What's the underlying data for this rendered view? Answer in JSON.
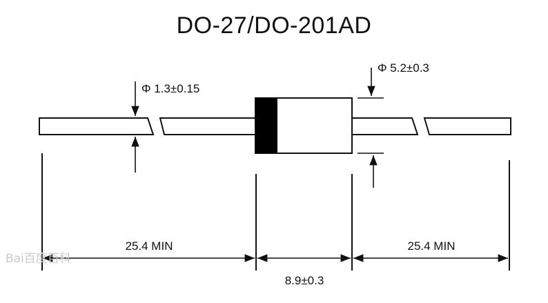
{
  "title": "DO-27/DO-201AD",
  "dimensions": {
    "lead_diameter": "Φ 1.3±0.15",
    "body_diameter": "Φ 5.2±0.3",
    "left_lead_length": "25.4 MIN",
    "right_lead_length": "25.4 MIN",
    "body_length": "8.9±0.3"
  },
  "watermark": "Bai百度百科",
  "colors": {
    "line": "#111111",
    "band": "#000000",
    "watermark": "#c9c9c9"
  }
}
